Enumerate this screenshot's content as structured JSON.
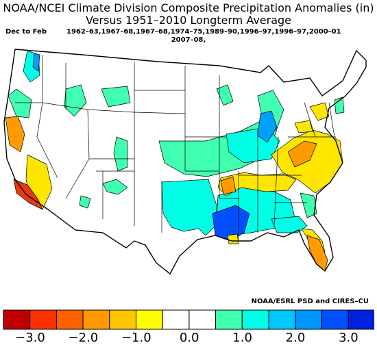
{
  "title": {
    "line1": "NOAA/NCEI Climate Division Composite Precipitation Anomalies (in)",
    "line2": "Versus 1951–2010 Longterm Average"
  },
  "subheader": {
    "season": "Dec to Feb",
    "years_line1": "1962–63,1967–68,1967–68,1974–75,1989–90,1996–97,1996–97,2000–01",
    "years_line2": "2007–08,"
  },
  "credit": "NOAA/ESRL PSD and CIRES–CU",
  "legend": {
    "colors": [
      "#c00000",
      "#ff3000",
      "#ff6000",
      "#ff9a00",
      "#ffc600",
      "#ffff00",
      "#ffffff",
      "#ffffff",
      "#40ffb0",
      "#00ffe6",
      "#00c8ff",
      "#0096ff",
      "#0050ff",
      "#0020e0"
    ],
    "tick_labels": [
      "−3.0",
      "−2.0",
      "−1.0",
      "0.0",
      "1.0",
      "2.0",
      "3.0"
    ]
  },
  "map": {
    "colors": {
      "outline": "#000000",
      "neutral": "#ffffff",
      "dry_severe": "#e83a10",
      "dry_moderate": "#ff9a00",
      "dry_slight": "#ffe600",
      "wet_slight": "#40ffb0",
      "wet_moderate": "#00ffe6",
      "wet_strong": "#00a0ff",
      "wet_severe": "#0050ff"
    }
  }
}
